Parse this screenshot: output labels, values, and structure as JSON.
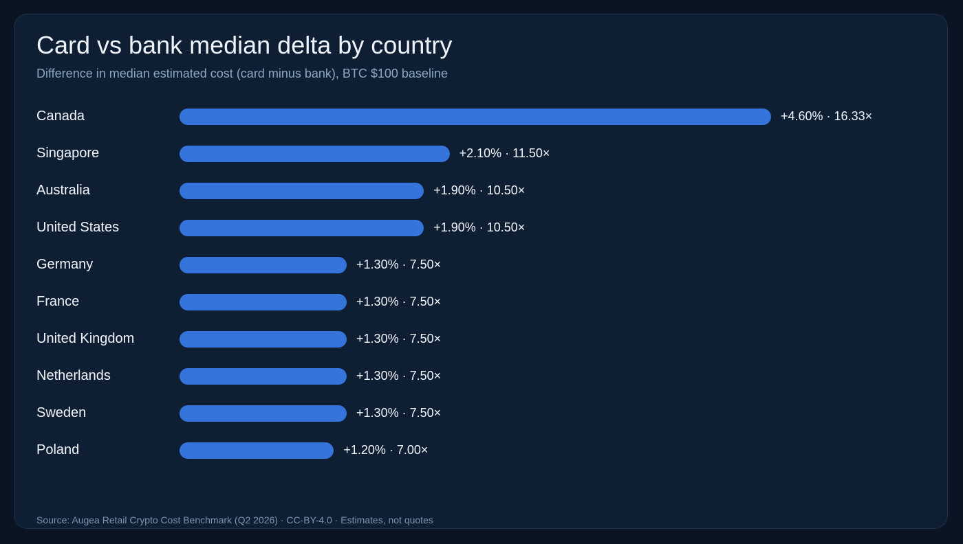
{
  "chart_data": {
    "type": "bar",
    "orientation": "horizontal",
    "title": "Card vs bank median delta by country",
    "subtitle": "Difference in median estimated cost (card minus bank), BTC $100 baseline",
    "categories": [
      "Canada",
      "Singapore",
      "Australia",
      "United States",
      "Germany",
      "France",
      "United Kingdom",
      "Netherlands",
      "Sweden",
      "Poland"
    ],
    "values": [
      4.6,
      2.1,
      1.9,
      1.9,
      1.3,
      1.3,
      1.3,
      1.3,
      1.3,
      1.2
    ],
    "data_labels": [
      "+4.60% · 16.33×",
      "+2.10% · 11.50×",
      "+1.90% · 10.50×",
      "+1.90% · 10.50×",
      "+1.30% · 7.50×",
      "+1.30% · 7.50×",
      "+1.30% · 7.50×",
      "+1.30% · 7.50×",
      "+1.30% · 7.50×",
      "+1.20% · 7.00×"
    ],
    "xlim": [
      0,
      4.6
    ],
    "grid": false,
    "bar_color": "#3574db",
    "source": "Source: Augea Retail Crypto Cost Benchmark (Q2 2026) · CC-BY-4.0 · Estimates, not quotes"
  }
}
